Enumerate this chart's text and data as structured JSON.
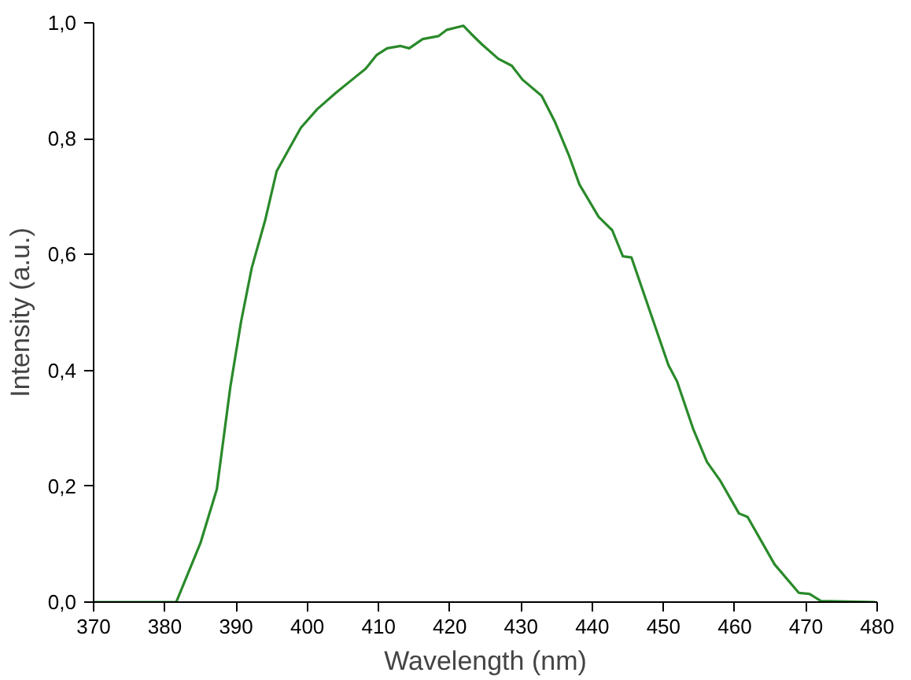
{
  "chart_data": {
    "type": "line",
    "xlabel": "Wavelength (nm)",
    "ylabel": "Intensity (a.u.)",
    "xlim": [
      370,
      480
    ],
    "ylim": [
      0,
      1.0
    ],
    "xticks": [
      370,
      380,
      390,
      400,
      410,
      420,
      430,
      440,
      450,
      460,
      470,
      480
    ],
    "yticks": [
      {
        "value": 0,
        "label": "0,0"
      },
      {
        "value": 0.2,
        "label": "0,2"
      },
      {
        "value": 0.4,
        "label": "0,4"
      },
      {
        "value": 0.6,
        "label": "0,6"
      },
      {
        "value": 0.8,
        "label": "0,8"
      },
      {
        "value": 1.0,
        "label": "1,0"
      }
    ],
    "marker": "none",
    "line_style": "solid",
    "series": [
      {
        "color": "#2a8a2a",
        "x": [
          370,
          381.6,
          385.0,
          387.3,
          389.2,
          390.7,
          392.2,
          394.1,
          395.7,
          397.6,
          399.1,
          401.4,
          404.0,
          406.3,
          408.2,
          409.7,
          411.2,
          413.1,
          414.3,
          416.2,
          418.4,
          419.6,
          421.9,
          423.0,
          424.5,
          426.8,
          428.7,
          430.2,
          432.9,
          434.8,
          436.7,
          438.2,
          440.9,
          442.8,
          444.3,
          445.5,
          448.1,
          450.7,
          451.9,
          454.2,
          456.1,
          458.0,
          460.6,
          461.8,
          465.6,
          469.0,
          470.5,
          472.1,
          479.7
        ],
        "values": [
          0,
          0,
          0.102,
          0.195,
          0.372,
          0.484,
          0.577,
          0.66,
          0.744,
          0.786,
          0.819,
          0.851,
          0.879,
          0.902,
          0.921,
          0.944,
          0.956,
          0.96,
          0.956,
          0.972,
          0.977,
          0.988,
          0.995,
          0.981,
          0.963,
          0.938,
          0.926,
          0.902,
          0.874,
          0.828,
          0.772,
          0.721,
          0.665,
          0.642,
          0.597,
          0.595,
          0.502,
          0.409,
          0.381,
          0.298,
          0.242,
          0.209,
          0.153,
          0.147,
          0.065,
          0.016,
          0.014,
          0.002,
          0
        ]
      }
    ]
  }
}
